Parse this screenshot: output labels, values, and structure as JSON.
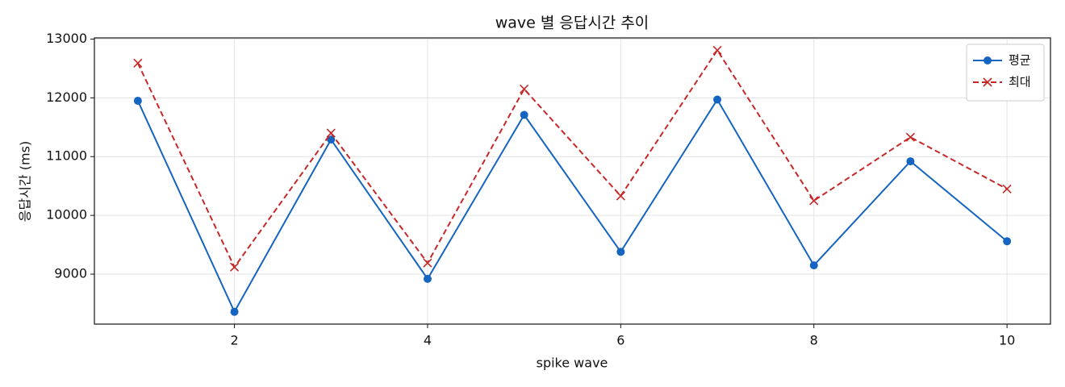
{
  "chart_data": {
    "type": "line",
    "title": "wave 별 응답시간 추이",
    "x_label": "spike wave",
    "y_label": "응답시간 (ms)",
    "x": [
      1,
      2,
      3,
      4,
      5,
      6,
      7,
      8,
      9,
      10
    ],
    "series": [
      {
        "name": "평균",
        "color": "#1565c0",
        "marker": "o",
        "dash": "solid",
        "values": [
          11950,
          8360,
          11290,
          8920,
          11710,
          9380,
          11970,
          9150,
          10920,
          9560
        ]
      },
      {
        "name": "최대",
        "color": "#c62828",
        "marker": "x",
        "dash": "dashed",
        "values": [
          12590,
          9120,
          11400,
          9190,
          12150,
          10330,
          12810,
          10250,
          11330,
          10450
        ]
      }
    ],
    "xlim": [
      0.55,
      10.45
    ],
    "xticks": [
      2,
      4,
      6,
      8,
      10
    ],
    "ylim": [
      8150,
      13020
    ],
    "yticks": [
      9000,
      10000,
      11000,
      12000,
      13000
    ],
    "grid": true,
    "legend": "upper right"
  }
}
